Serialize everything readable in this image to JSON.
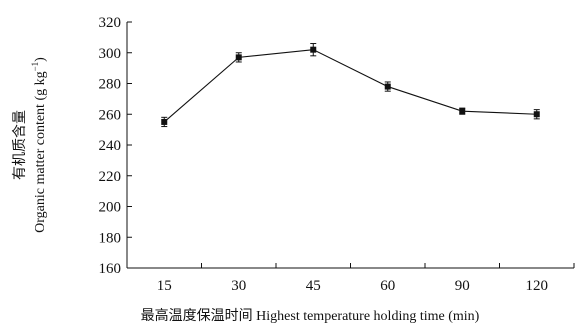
{
  "chart_data": {
    "type": "line",
    "title": "",
    "xlabel": "最高温度保温时间 Highest temperature holding time (min)",
    "ylabel_line1": "有机质含量",
    "ylabel_line2": "Organic matter content (g kg",
    "ylabel_sup": "−1",
    "ylabel_close": ")",
    "categories": [
      "15",
      "30",
      "45",
      "60",
      "90",
      "120"
    ],
    "series": [
      {
        "values": [
          255,
          297,
          302,
          278,
          262,
          260
        ],
        "errors": [
          3,
          3,
          4,
          3,
          2,
          3
        ]
      }
    ],
    "ylim": [
      160,
      320
    ],
    "yticks": [
      160,
      180,
      200,
      220,
      240,
      260,
      280,
      300,
      320
    ],
    "grid": false,
    "legend": "none"
  }
}
